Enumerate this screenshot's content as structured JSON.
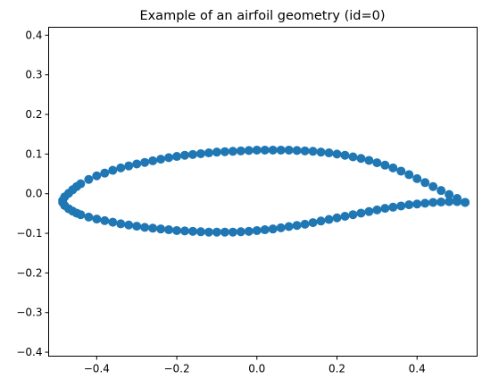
{
  "chart_data": {
    "type": "scatter",
    "title": "Example of an airfoil geometry (id=0)",
    "xlabel": "",
    "ylabel": "",
    "xlim": [
      -0.52,
      0.55
    ],
    "ylim": [
      -0.41,
      0.42
    ],
    "x_ticks": [
      -0.4,
      -0.2,
      0.0,
      0.2,
      0.4
    ],
    "y_ticks": [
      -0.4,
      -0.3,
      -0.2,
      -0.1,
      0.0,
      0.1,
      0.2,
      0.3,
      0.4
    ],
    "x_tick_labels": [
      "−0.4",
      "−0.2",
      "0.0",
      "0.2",
      "0.4"
    ],
    "y_tick_labels": [
      "−0.4",
      "−0.3",
      "−0.2",
      "−0.1",
      "0.0",
      "0.1",
      "0.2",
      "0.3",
      "0.4"
    ],
    "grid": false,
    "marker_color": "#1f77b4",
    "series": [
      {
        "upper_surface": {
          "x": [
            0.52,
            0.5,
            0.48,
            0.46,
            0.44,
            0.42,
            0.4,
            0.38,
            0.36,
            0.34,
            0.32,
            0.3,
            0.28,
            0.26,
            0.24,
            0.22,
            0.2,
            0.18,
            0.16,
            0.14,
            0.12,
            0.1,
            0.08,
            0.06,
            0.04,
            0.02,
            0.0,
            -0.02,
            -0.04,
            -0.06,
            -0.08,
            -0.1,
            -0.12,
            -0.14,
            -0.16,
            -0.18,
            -0.2,
            -0.22,
            -0.24,
            -0.26,
            -0.28,
            -0.3,
            -0.32,
            -0.34,
            -0.36,
            -0.38,
            -0.4,
            -0.42,
            -0.44,
            -0.45,
            -0.46,
            -0.47,
            -0.48,
            -0.485
          ],
          "y": [
            -0.022,
            -0.012,
            -0.002,
            0.008,
            0.018,
            0.028,
            0.038,
            0.048,
            0.057,
            0.065,
            0.072,
            0.078,
            0.084,
            0.089,
            0.093,
            0.097,
            0.1,
            0.103,
            0.105,
            0.107,
            0.108,
            0.109,
            0.11,
            0.11,
            0.11,
            0.11,
            0.11,
            0.109,
            0.108,
            0.107,
            0.106,
            0.105,
            0.103,
            0.101,
            0.099,
            0.097,
            0.094,
            0.091,
            0.087,
            0.083,
            0.079,
            0.075,
            0.07,
            0.065,
            0.059,
            0.052,
            0.045,
            0.036,
            0.025,
            0.018,
            0.01,
            0.001,
            -0.008,
            -0.017
          ]
        },
        "lower_surface": {
          "x": [
            -0.485,
            -0.48,
            -0.47,
            -0.46,
            -0.45,
            -0.44,
            -0.42,
            -0.4,
            -0.38,
            -0.36,
            -0.34,
            -0.32,
            -0.3,
            -0.28,
            -0.26,
            -0.24,
            -0.22,
            -0.2,
            -0.18,
            -0.16,
            -0.14,
            -0.12,
            -0.1,
            -0.08,
            -0.06,
            -0.04,
            -0.02,
            0.0,
            0.02,
            0.04,
            0.06,
            0.08,
            0.1,
            0.12,
            0.14,
            0.16,
            0.18,
            0.2,
            0.22,
            0.24,
            0.26,
            0.28,
            0.3,
            0.32,
            0.34,
            0.36,
            0.38,
            0.4,
            0.42,
            0.44,
            0.46,
            0.48,
            0.5,
            0.52
          ],
          "y": [
            -0.022,
            -0.03,
            -0.038,
            -0.044,
            -0.049,
            -0.053,
            -0.059,
            -0.064,
            -0.068,
            -0.072,
            -0.076,
            -0.079,
            -0.082,
            -0.085,
            -0.087,
            -0.089,
            -0.091,
            -0.093,
            -0.094,
            -0.095,
            -0.096,
            -0.097,
            -0.097,
            -0.097,
            -0.097,
            -0.096,
            -0.095,
            -0.093,
            -0.091,
            -0.089,
            -0.086,
            -0.083,
            -0.08,
            -0.077,
            -0.073,
            -0.069,
            -0.065,
            -0.061,
            -0.057,
            -0.053,
            -0.049,
            -0.045,
            -0.041,
            -0.037,
            -0.034,
            -0.031,
            -0.028,
            -0.026,
            -0.024,
            -0.022,
            -0.021,
            -0.02,
            -0.02,
            -0.022
          ]
        }
      }
    ]
  }
}
